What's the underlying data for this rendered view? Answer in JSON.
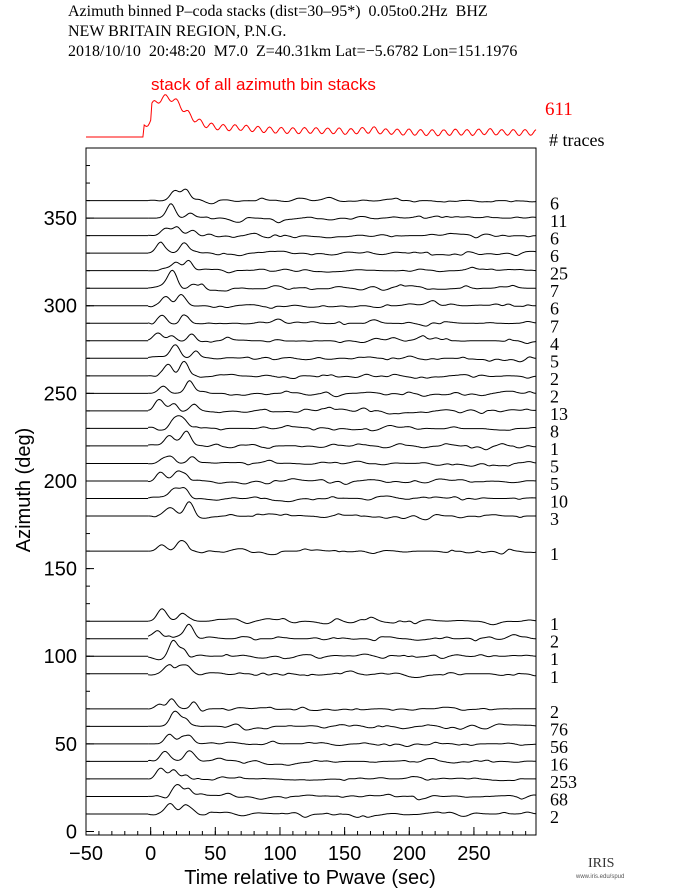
{
  "header": {
    "line1": "Azimuth binned P–coda stacks (dist=30–95*)  0.05to0.2Hz  BHZ",
    "line2": "NEW BRITAIN REGION, P.N.G.",
    "line3": "2018/10/10  20:48:20  M7.0  Z=40.31km Lat=−5.6782 Lon=151.1976"
  },
  "footer": {
    "logo": "IRIS",
    "logo_sub": "www.iris.edu/spud"
  },
  "chart_data": {
    "type": "line",
    "title": "",
    "xlabel": "Time relative to Pwave (sec)",
    "ylabel": "Azimuth (deg)",
    "xlim": [
      -50,
      298
    ],
    "ylim": [
      -2,
      390
    ],
    "x_ticks": [
      -50,
      0,
      50,
      100,
      150,
      200,
      250
    ],
    "y_ticks": [
      0,
      50,
      100,
      150,
      200,
      250,
      300,
      350
    ],
    "stack": {
      "label": "stack of all azimuth bin stacks",
      "count": "611",
      "color": "#ff0000"
    },
    "traces_label": "# traces",
    "series": [
      {
        "azimuth": 10,
        "count": "2"
      },
      {
        "azimuth": 20,
        "count": "68"
      },
      {
        "azimuth": 30,
        "count": "253"
      },
      {
        "azimuth": 40,
        "count": "16"
      },
      {
        "azimuth": 50,
        "count": "56"
      },
      {
        "azimuth": 60,
        "count": "76"
      },
      {
        "azimuth": 70,
        "count": "2"
      },
      {
        "azimuth": 90,
        "count": "1"
      },
      {
        "azimuth": 100,
        "count": "1"
      },
      {
        "azimuth": 110,
        "count": "2"
      },
      {
        "azimuth": 120,
        "count": "1"
      },
      {
        "azimuth": 160,
        "count": "1"
      },
      {
        "azimuth": 180,
        "count": "3"
      },
      {
        "azimuth": 190,
        "count": "10"
      },
      {
        "azimuth": 200,
        "count": "5"
      },
      {
        "azimuth": 210,
        "count": "5"
      },
      {
        "azimuth": 220,
        "count": "1"
      },
      {
        "azimuth": 230,
        "count": "8"
      },
      {
        "azimuth": 240,
        "count": "13"
      },
      {
        "azimuth": 250,
        "count": "2"
      },
      {
        "azimuth": 260,
        "count": "2"
      },
      {
        "azimuth": 270,
        "count": "5"
      },
      {
        "azimuth": 280,
        "count": "4"
      },
      {
        "azimuth": 290,
        "count": "7"
      },
      {
        "azimuth": 300,
        "count": "6"
      },
      {
        "azimuth": 310,
        "count": "7"
      },
      {
        "azimuth": 320,
        "count": "25"
      },
      {
        "azimuth": 330,
        "count": "6"
      },
      {
        "azimuth": 340,
        "count": "6"
      },
      {
        "azimuth": 350,
        "count": "11"
      },
      {
        "azimuth": 360,
        "count": "6"
      }
    ]
  }
}
